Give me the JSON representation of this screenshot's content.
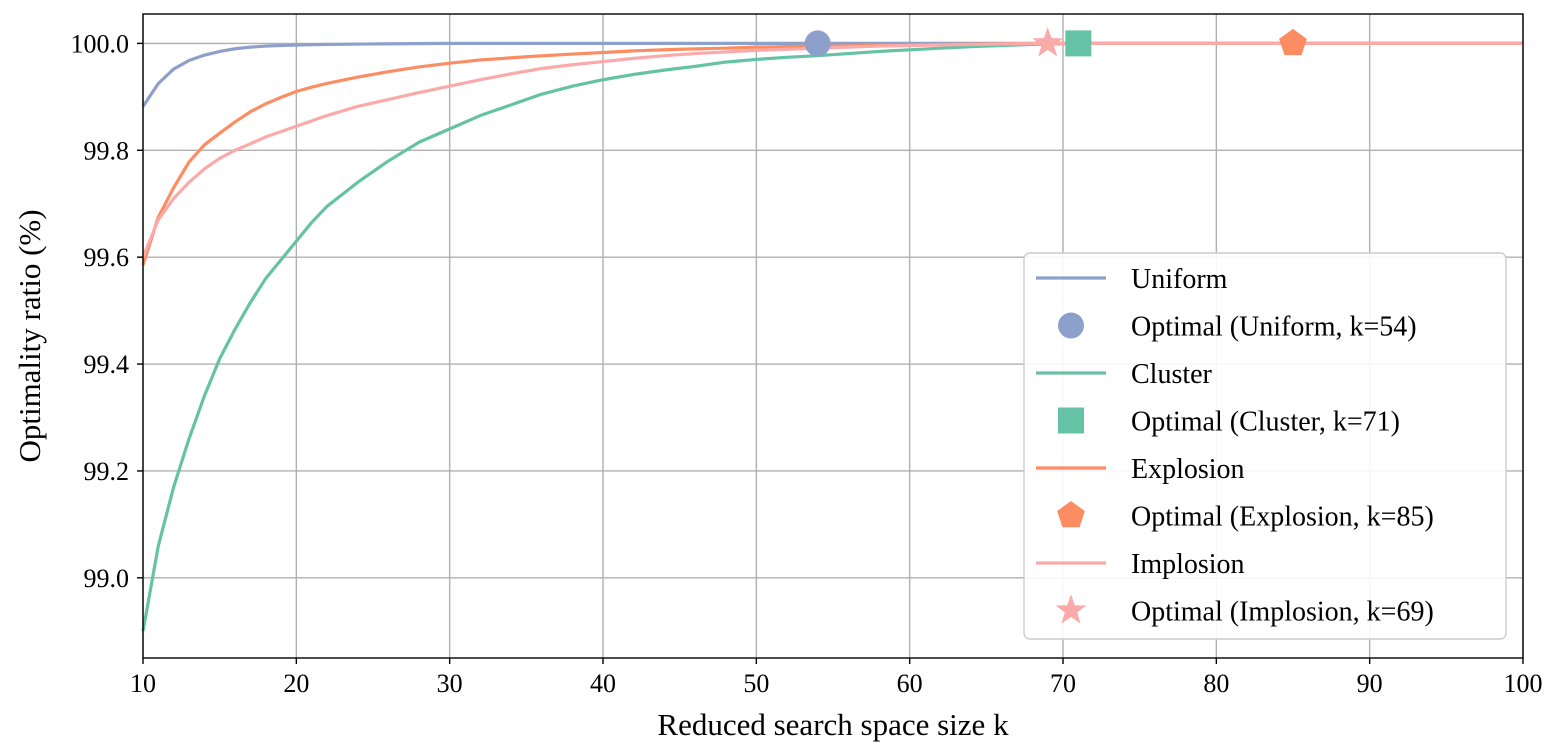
{
  "chart_data": {
    "type": "line",
    "title": "",
    "xlabel": "Reduced search space size k",
    "ylabel": "Optimality ratio (%)",
    "xlim": [
      10,
      100
    ],
    "ylim": [
      98.85,
      100.055
    ],
    "xticks": [
      10,
      20,
      30,
      40,
      50,
      60,
      70,
      80,
      90,
      100
    ],
    "xtick_labels": [
      "10",
      "20",
      "30",
      "40",
      "50",
      "60",
      "70",
      "80",
      "90",
      "100"
    ],
    "yticks": [
      99.0,
      99.2,
      99.4,
      99.6,
      99.8,
      100.0
    ],
    "ytick_labels": [
      "99.0",
      "99.2",
      "99.4",
      "99.6",
      "99.8",
      "100.0"
    ],
    "grid": true,
    "legend_position": "lower-right",
    "series": [
      {
        "name": "Uniform",
        "color": "#8da0cb",
        "x": [
          10,
          11,
          12,
          13,
          14,
          15,
          16,
          17,
          18,
          20,
          22,
          25,
          30,
          40,
          54,
          60,
          70,
          80,
          90,
          100
        ],
        "y": [
          99.882,
          99.925,
          99.952,
          99.968,
          99.978,
          99.985,
          99.99,
          99.993,
          99.995,
          99.997,
          99.998,
          99.999,
          100.0,
          100.0,
          100.0,
          100.0,
          100.0,
          100.0,
          100.0,
          100.0
        ]
      },
      {
        "name": "Cluster",
        "color": "#66c2a5",
        "x": [
          10,
          11,
          12,
          13,
          14,
          15,
          16,
          17,
          18,
          19,
          20,
          21,
          22,
          24,
          26,
          28,
          30,
          32,
          34,
          36,
          38,
          40,
          42,
          44,
          46,
          48,
          50,
          52,
          54,
          56,
          58,
          60,
          62,
          64,
          66,
          68,
          71,
          80,
          90,
          100
        ],
        "y": [
          98.9,
          99.06,
          99.17,
          99.26,
          99.34,
          99.41,
          99.465,
          99.515,
          99.56,
          99.595,
          99.63,
          99.665,
          99.695,
          99.74,
          99.78,
          99.815,
          99.84,
          99.865,
          99.885,
          99.905,
          99.92,
          99.932,
          99.942,
          99.95,
          99.957,
          99.965,
          99.97,
          99.974,
          99.977,
          99.981,
          99.985,
          99.988,
          99.991,
          99.994,
          99.996,
          99.998,
          100.0,
          100.0,
          100.0,
          100.0
        ]
      },
      {
        "name": "Explosion",
        "color": "#fc8d62",
        "x": [
          10,
          11,
          12,
          13,
          14,
          15,
          16,
          17,
          18,
          19,
          20,
          21,
          22,
          24,
          26,
          28,
          30,
          32,
          35,
          38,
          40,
          42,
          45,
          48,
          50,
          52,
          55,
          58,
          60,
          62,
          65,
          68,
          70,
          75,
          80,
          85,
          90,
          100
        ],
        "y": [
          99.585,
          99.675,
          99.73,
          99.778,
          99.81,
          99.832,
          99.853,
          99.872,
          99.887,
          99.899,
          99.91,
          99.918,
          99.925,
          99.937,
          99.947,
          99.956,
          99.963,
          99.969,
          99.975,
          99.98,
          99.983,
          99.986,
          99.989,
          99.991,
          99.993,
          99.994,
          99.995,
          99.996,
          99.997,
          99.998,
          99.999,
          99.9995,
          100.0,
          100.0,
          100.0,
          100.0,
          100.0,
          100.0
        ]
      },
      {
        "name": "Implosion",
        "color": "#fbaaaa",
        "x": [
          10,
          11,
          12,
          13,
          14,
          15,
          16,
          17,
          18,
          19,
          20,
          21,
          22,
          24,
          26,
          28,
          30,
          32,
          34,
          36,
          38,
          40,
          42,
          44,
          46,
          48,
          50,
          52,
          54,
          56,
          58,
          60,
          62,
          64,
          66,
          69,
          80,
          90,
          100
        ],
        "y": [
          99.6,
          99.67,
          99.71,
          99.74,
          99.765,
          99.785,
          99.8,
          99.812,
          99.825,
          99.835,
          99.845,
          99.855,
          99.865,
          99.882,
          99.895,
          99.908,
          99.92,
          99.932,
          99.943,
          99.953,
          99.96,
          99.966,
          99.972,
          99.977,
          99.981,
          99.984,
          99.987,
          99.989,
          99.991,
          99.993,
          99.995,
          99.996,
          99.997,
          99.998,
          99.999,
          100.0,
          100.0,
          100.0,
          100.0
        ]
      }
    ],
    "optimal_points": [
      {
        "name": "Optimal (Uniform, k=54)",
        "x": 54,
        "y": 100.0,
        "marker": "circle",
        "color": "#8da0cb"
      },
      {
        "name": "Optimal (Cluster, k=71)",
        "x": 71,
        "y": 100.0,
        "marker": "square",
        "color": "#66c2a5"
      },
      {
        "name": "Optimal (Explosion, k=85)",
        "x": 85,
        "y": 100.0,
        "marker": "pentagon",
        "color": "#fc8d62"
      },
      {
        "name": "Optimal (Implosion, k=69)",
        "x": 69,
        "y": 100.0,
        "marker": "star",
        "color": "#fbaaaa"
      }
    ],
    "legend": [
      {
        "label": "Uniform",
        "kind": "line",
        "color": "#8da0cb"
      },
      {
        "label": "Optimal (Uniform, k=54)",
        "kind": "circle",
        "color": "#8da0cb"
      },
      {
        "label": "Cluster",
        "kind": "line",
        "color": "#66c2a5"
      },
      {
        "label": "Optimal (Cluster, k=71)",
        "kind": "square",
        "color": "#66c2a5"
      },
      {
        "label": "Explosion",
        "kind": "line",
        "color": "#fc8d62"
      },
      {
        "label": "Optimal (Explosion, k=85)",
        "kind": "pentagon",
        "color": "#fc8d62"
      },
      {
        "label": "Implosion",
        "kind": "line",
        "color": "#fbaaaa"
      },
      {
        "label": "Optimal (Implosion, k=69)",
        "kind": "star",
        "color": "#fbaaaa"
      }
    ]
  }
}
